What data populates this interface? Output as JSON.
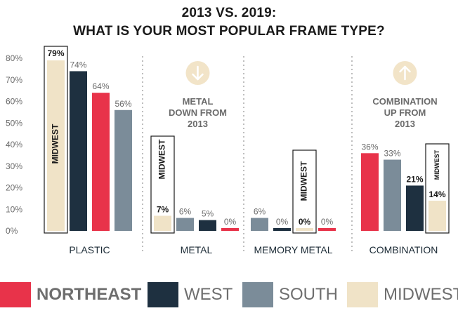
{
  "title_lines": [
    "2013 VS. 2019:",
    "WHAT IS YOUR MOST POPULAR FRAME TYPE?"
  ],
  "colors": {
    "northeast": "#e8334a",
    "west": "#1e3040",
    "south": "#7b8c99",
    "midwest": "#f0e3c7",
    "axis_text": "#6b6b6b",
    "callout_circle": "#f2e4c8"
  },
  "legend": [
    {
      "label": "NORTHEAST",
      "series": "northeast"
    },
    {
      "label": "WEST",
      "series": "west"
    },
    {
      "label": "SOUTH",
      "series": "south"
    },
    {
      "label": "MIDWEST",
      "series": "midwest"
    }
  ],
  "callouts": [
    {
      "group": "METAL",
      "icon": "arrow-down-icon",
      "text_lines": [
        "METAL",
        "DOWN FROM",
        "2013"
      ]
    },
    {
      "group": "COMBINATION",
      "icon": "arrow-up-icon",
      "text_lines": [
        "COMBINATION",
        "UP FROM",
        "2013"
      ]
    }
  ],
  "chart_data": {
    "type": "bar",
    "title": "2013 VS. 2019: WHAT IS YOUR MOST POPULAR FRAME TYPE?",
    "categories": [
      "PLASTIC",
      "METAL",
      "MEMORY METAL",
      "COMBINATION"
    ],
    "ylim": [
      0,
      80
    ],
    "yticks": [
      "0%",
      "10%",
      "20%",
      "30%",
      "40%",
      "50%",
      "60%",
      "70%",
      "80%"
    ],
    "grid": false,
    "legend_position": "bottom",
    "highlight_series": "MIDWEST",
    "groups": [
      {
        "category": "PLASTIC",
        "bars": [
          {
            "series": "MIDWEST",
            "value": 79,
            "label": "79%"
          },
          {
            "series": "WEST",
            "value": 74,
            "label": "74%"
          },
          {
            "series": "NORTHEAST",
            "value": 64,
            "label": "64%"
          },
          {
            "series": "SOUTH",
            "value": 56,
            "label": "56%"
          }
        ]
      },
      {
        "category": "METAL",
        "bars": [
          {
            "series": "MIDWEST",
            "value": 7,
            "label": "7%"
          },
          {
            "series": "SOUTH",
            "value": 6,
            "label": "6%"
          },
          {
            "series": "WEST",
            "value": 5,
            "label": "5%"
          },
          {
            "series": "NORTHEAST",
            "value": 0,
            "label": "0%"
          }
        ]
      },
      {
        "category": "MEMORY METAL",
        "bars": [
          {
            "series": "SOUTH",
            "value": 6,
            "label": "6%"
          },
          {
            "series": "WEST",
            "value": 0,
            "label": "0%"
          },
          {
            "series": "MIDWEST",
            "value": 0,
            "label": "0%"
          },
          {
            "series": "NORTHEAST",
            "value": 0,
            "label": "0%"
          }
        ]
      },
      {
        "category": "COMBINATION",
        "bars": [
          {
            "series": "NORTHEAST",
            "value": 36,
            "label": "36%"
          },
          {
            "series": "SOUTH",
            "value": 33,
            "label": "33%"
          },
          {
            "series": "WEST",
            "value": 21,
            "label": "21%"
          },
          {
            "series": "MIDWEST",
            "value": 14,
            "label": "14%"
          }
        ]
      }
    ]
  }
}
